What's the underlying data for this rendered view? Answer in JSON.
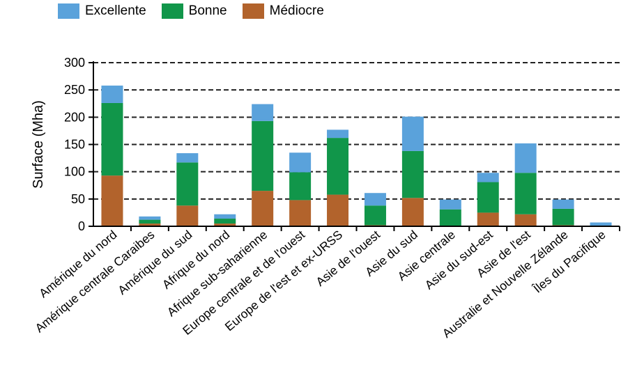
{
  "chart_data": {
    "type": "bar",
    "stacked": true,
    "ylabel": "Surface (Mha)",
    "xlabel": "",
    "ylim": [
      0,
      300
    ],
    "yticks": [
      0,
      50,
      100,
      150,
      200,
      250,
      300
    ],
    "grid": "horizontal-dashed",
    "legend_position": "top-left",
    "categories": [
      "Amérique du nord",
      "Amérique centrale Caraibes",
      "Amérique du sud",
      "Afrique du nord",
      "Afrique sub-saharienne",
      "Europe centrale et de l'ouest",
      "Europe de l'est et ex-URSS",
      "Asie de l'ouest",
      "Asie du sud",
      "Asie centrale",
      "Asie du sud-est",
      "Asie de l'est",
      "Australie et Nouvelle Zélande",
      "Îles du Pacifique"
    ],
    "series": [
      {
        "name": "Médiocre",
        "color": "#b2632c",
        "values": [
          93,
          5,
          38,
          5,
          65,
          48,
          58,
          2,
          52,
          0,
          25,
          22,
          2,
          0
        ]
      },
      {
        "name": "Bonne",
        "color": "#11964a",
        "values": [
          133,
          7,
          79,
          9,
          128,
          51,
          104,
          36,
          86,
          31,
          56,
          76,
          30,
          0
        ]
      },
      {
        "name": "Excellente",
        "color": "#5aa2db",
        "values": [
          32,
          6,
          17,
          8,
          31,
          36,
          15,
          23,
          63,
          18,
          17,
          54,
          17,
          7
        ]
      }
    ]
  },
  "legend": {
    "items": [
      {
        "label": "Excellente",
        "color": "#5aa2db"
      },
      {
        "label": "Bonne",
        "color": "#11964a"
      },
      {
        "label": "Médiocre",
        "color": "#b2632c"
      }
    ]
  }
}
